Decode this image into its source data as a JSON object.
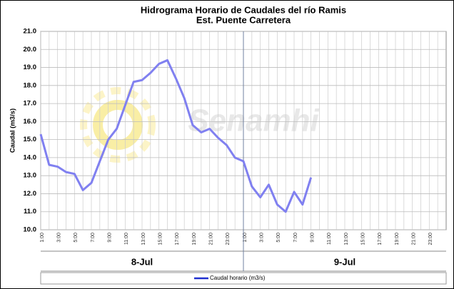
{
  "chart_data": {
    "type": "line",
    "title": "Hidrograma Horario de Caudales del río Ramis",
    "subtitle": "Est. Puente Carretera",
    "ylabel": "Caudal (m3/s)",
    "watermark": "Senamhi",
    "days": [
      "8-Jul",
      "9-Jul"
    ],
    "categories": [
      "1:00",
      null,
      "3:00",
      null,
      "5:00",
      null,
      "7:00",
      null,
      "9:00",
      null,
      "11:00",
      null,
      "13:00",
      null,
      "15:00",
      null,
      "17:00",
      null,
      "19:00",
      null,
      "21:00",
      null,
      "23:00",
      null,
      "1:00",
      null,
      "3:00",
      null,
      "5:00",
      null,
      "7:00",
      null,
      "9:00",
      null,
      "11:00",
      null,
      "13:00",
      null,
      "15:00",
      null,
      "17:00",
      null,
      "19:00",
      null,
      "21:00",
      null,
      "23:00",
      null
    ],
    "series": [
      {
        "name": "Caudal horario (m3/s)",
        "color": "#8080f0",
        "values": [
          15.3,
          13.6,
          13.5,
          13.2,
          13.1,
          12.2,
          12.6,
          13.8,
          15.0,
          15.6,
          16.9,
          18.2,
          18.3,
          18.7,
          19.2,
          19.4,
          18.4,
          17.3,
          15.8,
          15.4,
          15.6,
          15.1,
          14.7,
          14.0,
          13.8,
          12.4,
          11.8,
          12.5,
          11.4,
          11.0,
          12.1,
          11.4,
          12.9,
          null,
          null,
          null,
          null,
          null,
          null,
          null,
          null,
          null,
          null,
          null,
          null,
          null,
          null,
          null
        ]
      }
    ],
    "ylim": [
      10,
      21
    ],
    "yticks": [
      {
        "value": 10,
        "label": "10.0"
      },
      {
        "value": 11,
        "label": "11.0"
      },
      {
        "value": 12,
        "label": "12.0"
      },
      {
        "value": 13,
        "label": "13.0"
      },
      {
        "value": 14,
        "label": "14.0"
      },
      {
        "value": 15,
        "label": "15.0"
      },
      {
        "value": 16,
        "label": "16.0"
      },
      {
        "value": 17,
        "label": "17.0"
      },
      {
        "value": 18,
        "label": "18.0"
      },
      {
        "value": 19,
        "label": "19.0"
      },
      {
        "value": 20,
        "label": "20.0"
      },
      {
        "value": 21,
        "label": "21.0"
      }
    ],
    "grid": true
  }
}
